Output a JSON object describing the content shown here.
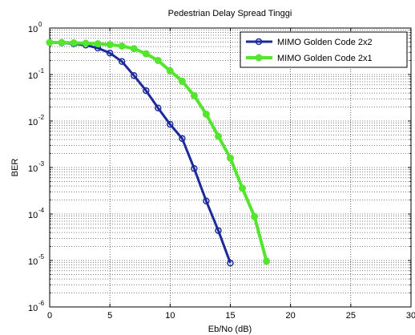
{
  "chart_data": {
    "type": "line",
    "title": "Pedestrian Delay Spread Tinggi",
    "xlabel": "Eb/No (dB)",
    "ylabel": "BER",
    "xlim": [
      0,
      30
    ],
    "ylim": [
      1e-06,
      1
    ],
    "yscale": "log",
    "grid": true,
    "legend_position": "top-right",
    "x_ticks": [
      0,
      5,
      10,
      15,
      20,
      25,
      30
    ],
    "y_ticks": [
      {
        "base": "10",
        "exp": "0"
      },
      {
        "base": "10",
        "exp": "-1"
      },
      {
        "base": "10",
        "exp": "-2"
      },
      {
        "base": "10",
        "exp": "-3"
      },
      {
        "base": "10",
        "exp": "-4"
      },
      {
        "base": "10",
        "exp": "-5"
      },
      {
        "base": "10",
        "exp": "-6"
      }
    ],
    "series": [
      {
        "name": "MIMO Golden Code 2x2",
        "color": "#1c2b99",
        "marker": "circle",
        "x": [
          0,
          1,
          2,
          3,
          4,
          5,
          6,
          7,
          8,
          9,
          10,
          11,
          12,
          13,
          14,
          15,
          16
        ],
        "y": [
          0.49,
          0.48,
          0.46,
          0.43,
          0.37,
          0.29,
          0.19,
          0.095,
          0.045,
          0.019,
          0.0085,
          0.0042,
          0.00095,
          0.00019,
          4.4e-05,
          8.8e-06,
          null
        ]
      },
      {
        "name": "MIMO Golden Code 2x1",
        "color": "#55e52e",
        "marker": "circle",
        "x": [
          0,
          1,
          2,
          3,
          4,
          5,
          6,
          7,
          8,
          9,
          10,
          11,
          12,
          13,
          14,
          15,
          16,
          17,
          18,
          19
        ],
        "y": [
          0.49,
          0.49,
          0.48,
          0.47,
          0.46,
          0.44,
          0.41,
          0.36,
          0.28,
          0.2,
          0.12,
          0.072,
          0.035,
          0.014,
          0.0047,
          0.0016,
          0.00036,
          8.8e-05,
          9.7e-06,
          null
        ]
      }
    ]
  }
}
